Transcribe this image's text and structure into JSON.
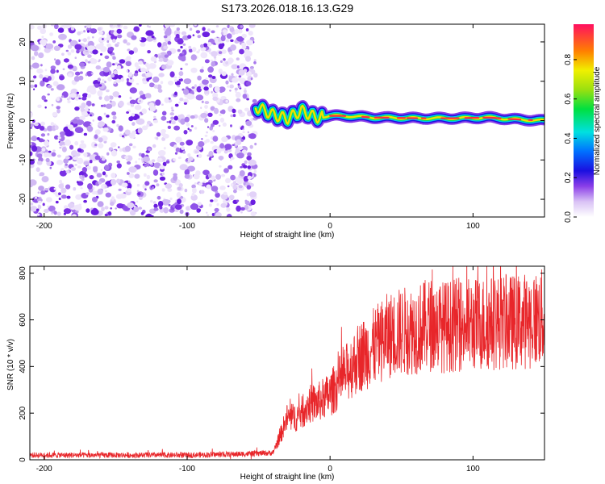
{
  "figure_title": "S173.2026.018.16.13.G29",
  "colors": {
    "snr_line": "#e8262a",
    "axis": "#000000",
    "background": "#ffffff"
  },
  "chart_data": [
    {
      "type": "heatmap",
      "title": "S173.2026.018.16.13.G29",
      "xlabel": "Height of straight line (km)",
      "ylabel": "Frequency (Hz)",
      "xlim": [
        -210,
        150
      ],
      "ylim": [
        -24.5,
        24.5
      ],
      "xticks": [
        -200,
        -100,
        0,
        100
      ],
      "xtick_labels": [
        "-200",
        "-100",
        "0",
        "100"
      ],
      "yticks": [
        -20,
        -10,
        0,
        10,
        20
      ],
      "ytick_labels": [
        "-20",
        "-10",
        "0",
        "10",
        "20"
      ],
      "noise_region_x": [
        -210,
        -52
      ],
      "signal_track": {
        "x": [
          -52,
          -40,
          -30,
          -20,
          -10,
          0,
          10,
          30,
          60,
          90,
          110,
          130,
          150
        ],
        "freq": [
          3.5,
          1.5,
          0.5,
          2.5,
          0.8,
          1.2,
          1.2,
          0.8,
          0.6,
          0.6,
          0.8,
          0.3,
          0.0
        ],
        "amplitude": [
          0.25,
          0.3,
          0.35,
          0.4,
          0.5,
          0.6,
          0.65,
          0.7,
          0.75,
          0.8,
          0.8,
          0.8,
          0.85
        ]
      },
      "colorbar": {
        "label": "Normalized spectral amplitude",
        "range": [
          0.0,
          0.98
        ],
        "ticks": [
          0.0,
          0.2,
          0.4,
          0.6,
          0.8
        ],
        "tick_labels": [
          "0.0",
          "0.2",
          "0.4",
          "0.6",
          "0.8"
        ]
      }
    },
    {
      "type": "line",
      "xlabel": "Height of straight line (km)",
      "ylabel": "SNR (10 * v/v)",
      "xlim": [
        -210,
        150
      ],
      "ylim": [
        0,
        830
      ],
      "xticks": [
        -200,
        -100,
        0,
        100
      ],
      "xtick_labels": [
        "-200",
        "-100",
        "0",
        "100"
      ],
      "yticks": [
        0,
        200,
        400,
        600,
        800
      ],
      "ytick_labels": [
        "0",
        "200",
        "400",
        "600",
        "800"
      ],
      "series": [
        {
          "name": "SNR",
          "x": [
            -210,
            -150,
            -100,
            -60,
            -40,
            -35,
            -30,
            -25,
            -20,
            -15,
            -10,
            -5,
            0,
            5,
            10,
            15,
            20,
            30,
            40,
            50,
            60,
            70,
            80,
            90,
            100,
            110,
            120,
            130,
            140,
            150
          ],
          "values": [
            20,
            20,
            20,
            25,
            30,
            100,
            180,
            180,
            200,
            240,
            240,
            260,
            280,
            320,
            360,
            400,
            440,
            480,
            530,
            550,
            560,
            580,
            570,
            580,
            580,
            585,
            590,
            590,
            600,
            610
          ]
        }
      ]
    }
  ]
}
